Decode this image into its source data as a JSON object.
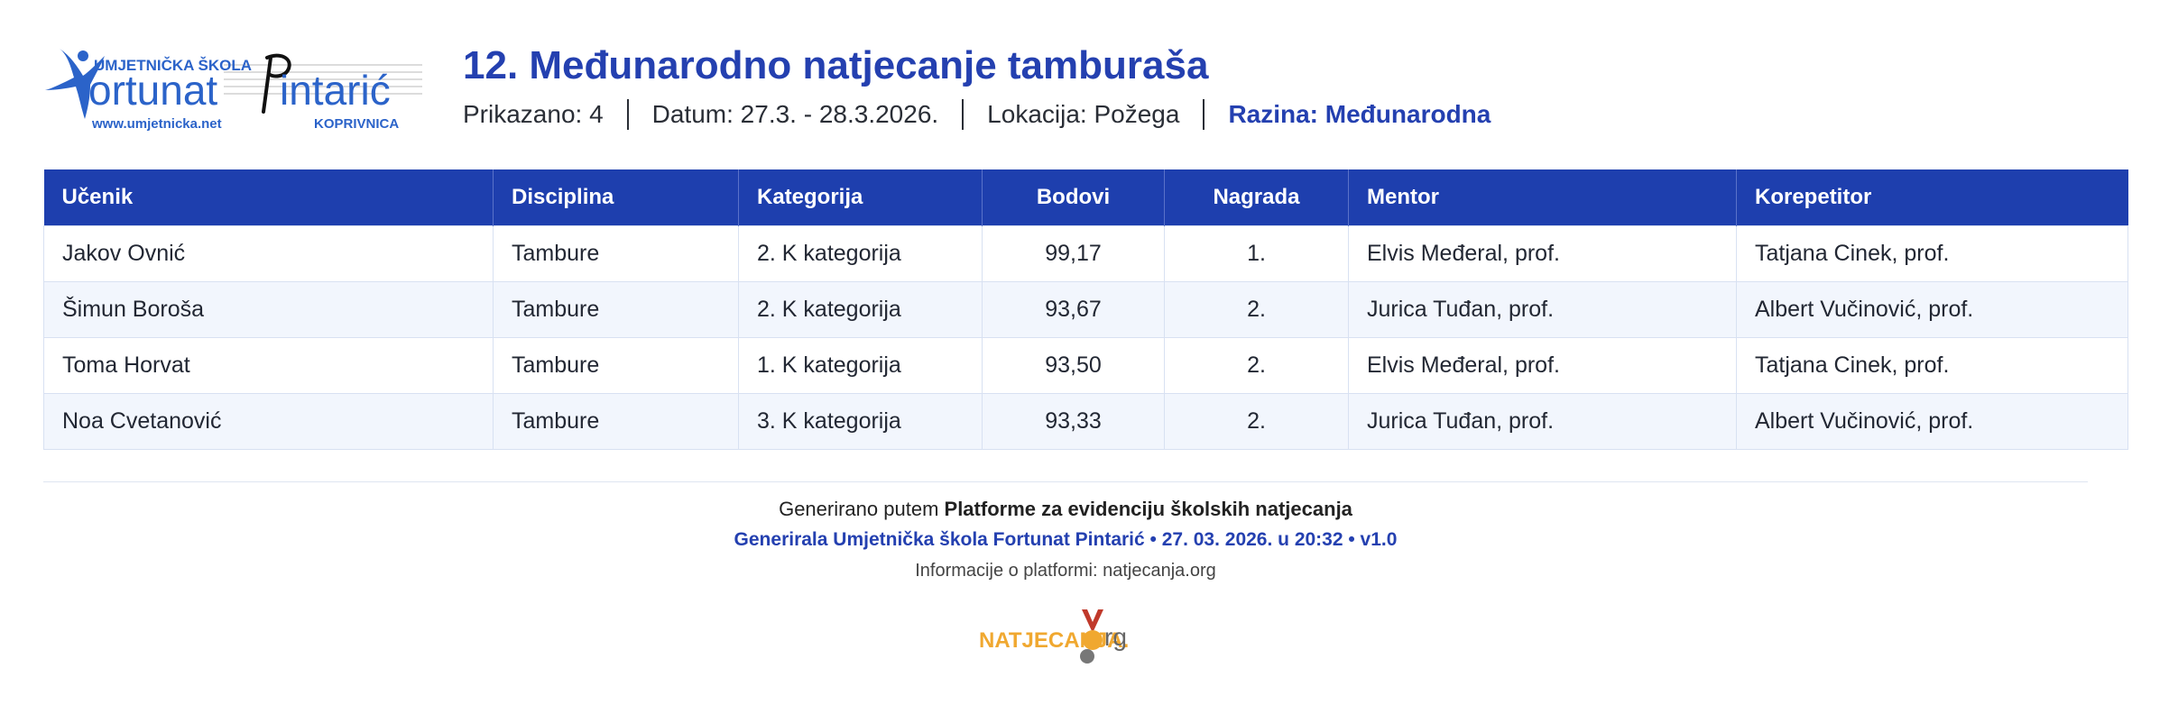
{
  "logo": {
    "school_top": "UMJETNIČKA ŠKOLA",
    "school_main": "ortunat",
    "school_main2": "intarić",
    "url": "www.umjetnicka.net",
    "city": "KOPRIVNICA",
    "brand_color": "#2b63c9"
  },
  "header": {
    "title": "12. Međunarodno natjecanje tamburaša",
    "shown": "Prikazano: 4",
    "date": "Datum: 27.3. - 28.3.2026.",
    "location": "Lokacija: Požega",
    "level": "Razina: Međunarodna"
  },
  "table": {
    "columns": [
      "Učenik",
      "Disciplina",
      "Kategorija",
      "Bodovi",
      "Nagrada",
      "Mentor",
      "Korepetitor"
    ],
    "rows": [
      [
        "Jakov Ovnić",
        "Tambure",
        "2. K kategorija",
        "99,17",
        "1.",
        "Elvis Međeral, prof.",
        "Tatjana Cinek, prof."
      ],
      [
        "Šimun Boroša",
        "Tambure",
        "2. K kategorija",
        "93,67",
        "2.",
        "Jurica Tuđan, prof.",
        "Albert Vučinović, prof."
      ],
      [
        "Toma Horvat",
        "Tambure",
        "1. K kategorija",
        "93,50",
        "2.",
        "Elvis Međeral, prof.",
        "Tatjana Cinek, prof."
      ],
      [
        "Noa Cvetanović",
        "Tambure",
        "3. K kategorija",
        "93,33",
        "2.",
        "Jurica Tuđan, prof.",
        "Albert Vučinović, prof."
      ]
    ]
  },
  "footer": {
    "generated_prefix": "Generirano putem ",
    "platform_name": "Platforme za evidenciju školskih natjecanja",
    "generated_by": "Generirala Umjetnička škola Fortunat Pintarić • 27. 03. 2026. u 20:32 • v1.0",
    "info": "Informacije o platformi: natjecanja.org",
    "brand_text": "NATJECANJA.",
    "brand_suffix": "rg"
  },
  "colors": {
    "accent": "#2440b0",
    "table_header": "#1e3fae",
    "row_alt": "#f2f6fd",
    "brand_orange": "#f0a830",
    "medal_ribbon": "#c0392b"
  }
}
